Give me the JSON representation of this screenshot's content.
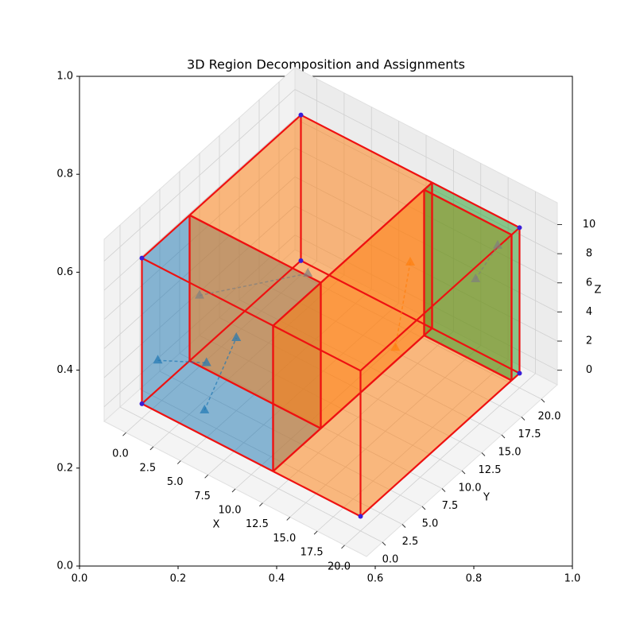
{
  "chart_data": {
    "type": "3d-box",
    "title": "3D Region Decomposition and Assignments",
    "xlabel": "X",
    "ylabel": "Y",
    "zlabel": "Z",
    "xlim": [
      -2,
      22
    ],
    "ylim": [
      -2,
      22
    ],
    "zlim": [
      -1,
      11.5
    ],
    "xticks": [
      {
        "value": 0,
        "label": "0.0"
      },
      {
        "value": 2.5,
        "label": "2.5"
      },
      {
        "value": 5,
        "label": "5.0"
      },
      {
        "value": 7.5,
        "label": "7.5"
      },
      {
        "value": 10,
        "label": "10.0"
      },
      {
        "value": 12.5,
        "label": "12.5"
      },
      {
        "value": 15,
        "label": "15.0"
      },
      {
        "value": 17.5,
        "label": "17.5"
      },
      {
        "value": 20,
        "label": "20.0"
      }
    ],
    "yticks": [
      {
        "value": 0,
        "label": "0.0"
      },
      {
        "value": 2.5,
        "label": "2.5"
      },
      {
        "value": 5,
        "label": "5.0"
      },
      {
        "value": 7.5,
        "label": "7.5"
      },
      {
        "value": 10,
        "label": "10.0"
      },
      {
        "value": 12.5,
        "label": "12.5"
      },
      {
        "value": 15,
        "label": "15.0"
      },
      {
        "value": 17.5,
        "label": "17.5"
      },
      {
        "value": 20,
        "label": "20.0"
      }
    ],
    "zticks": [
      0,
      2,
      4,
      6,
      8,
      10
    ],
    "frame": {
      "xlim": [
        0,
        1
      ],
      "ylim": [
        0,
        1
      ],
      "xticks": [
        {
          "value": 0,
          "label": "0.0"
        },
        {
          "value": 0.2,
          "label": "0.2"
        },
        {
          "value": 0.4,
          "label": "0.4"
        },
        {
          "value": 0.6,
          "label": "0.6"
        },
        {
          "value": 0.8,
          "label": "0.8"
        },
        {
          "value": 1,
          "label": "1.0"
        }
      ],
      "yticks": [
        {
          "value": 0,
          "label": "0.0"
        },
        {
          "value": 0.2,
          "label": "0.2"
        },
        {
          "value": 0.4,
          "label": "0.4"
        },
        {
          "value": 0.6,
          "label": "0.6"
        },
        {
          "value": 0.8,
          "label": "0.8"
        },
        {
          "value": 1,
          "label": "1.0"
        }
      ]
    },
    "regions": [
      {
        "x": [
          0,
          12
        ],
        "y": [
          0,
          6
        ],
        "z": [
          0,
          10
        ],
        "color": "#1f77b4"
      },
      {
        "x": [
          0,
          12
        ],
        "y": [
          6,
          20
        ],
        "z": [
          0,
          10
        ],
        "color": "#ff7f0e"
      },
      {
        "x": [
          12,
          20
        ],
        "y": [
          0,
          19
        ],
        "z": [
          0,
          10
        ],
        "color": "#ff7f0e"
      },
      {
        "x": [
          12,
          20
        ],
        "y": [
          19,
          20
        ],
        "z": [
          0,
          10
        ],
        "color": "#2ca02c"
      }
    ],
    "edge_color": "#ee1111",
    "corner_color": "#3a1fd8",
    "corners": [
      [
        0,
        0,
        0
      ],
      [
        0,
        0,
        10
      ],
      [
        20,
        0,
        0
      ],
      [
        20,
        20,
        0
      ],
      [
        20,
        20,
        10
      ],
      [
        0,
        20,
        10
      ],
      [
        0,
        20,
        0
      ]
    ],
    "assignments": [
      {
        "from": [
          0,
          2,
          2
        ],
        "to": [
          3,
          4,
          2
        ],
        "color": "#1f77b4"
      },
      {
        "from": [
          5,
          1,
          1
        ],
        "to": [
          5,
          5,
          4
        ],
        "color": "#1f77b4"
      },
      {
        "from": [
          2,
          4.5,
          6
        ],
        "to": [
          5,
          14,
          4
        ],
        "color": "#7f7f7f"
      },
      {
        "from": [
          13,
          14,
          2
        ],
        "to": [
          14,
          14.5,
          8
        ],
        "color": "#ff7f0e"
      },
      {
        "from": [
          17,
          18.6,
          6
        ],
        "to": [
          18,
          20,
          8
        ],
        "color": "#7f7f7f"
      }
    ]
  }
}
